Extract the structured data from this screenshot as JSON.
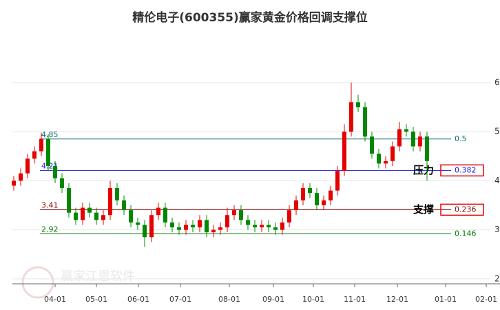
{
  "chart_data": {
    "type": "candlestick",
    "title": "精伦电子(600355)赢家黄金价格回调支撑位",
    "watermark": "赢家江恩软件",
    "up_color": "#e60000",
    "down_color": "#008800",
    "grid": true,
    "ylim": [
      1.9,
      7.05
    ],
    "yticks": [
      2,
      3,
      4,
      5,
      6
    ],
    "xlim": [
      -0.2,
      69.6
    ],
    "xticks": [
      {
        "value": 6,
        "label": "04-01"
      },
      {
        "value": 12,
        "label": "05-01"
      },
      {
        "value": 18.1,
        "label": "06-01"
      },
      {
        "value": 24.2,
        "label": "07-01"
      },
      {
        "value": 31.3,
        "label": "08-01"
      },
      {
        "value": 37.7,
        "label": "09-01"
      },
      {
        "value": 43.5,
        "label": "10-01"
      },
      {
        "value": 49.5,
        "label": "11-01"
      },
      {
        "value": 55.7,
        "label": "12-01"
      },
      {
        "value": 62.7,
        "label": "01-01"
      },
      {
        "value": 68.6,
        "label": "02-01"
      }
    ],
    "open": [
      3.9,
      4.0,
      4.15,
      4.45,
      4.6,
      4.85,
      4.3,
      4.05,
      3.85,
      3.35,
      3.2,
      3.45,
      3.35,
      3.2,
      3.3,
      3.85,
      3.6,
      3.4,
      3.15,
      3.1,
      2.85,
      3.3,
      3.45,
      3.15,
      3.05,
      3.0,
      3.1,
      3.05,
      3.2,
      2.95,
      3.0,
      3.05,
      3.3,
      3.4,
      3.2,
      3.1,
      3.05,
      3.1,
      3.05,
      3.0,
      3.15,
      3.4,
      3.6,
      3.85,
      3.75,
      3.5,
      3.6,
      3.8,
      4.2,
      5.0,
      5.6,
      5.5,
      4.9,
      4.55,
      4.35,
      4.4,
      4.7,
      5.05,
      5.0,
      4.7,
      4.9
    ],
    "high": [
      4.1,
      4.25,
      4.55,
      4.7,
      4.98,
      4.95,
      4.4,
      4.15,
      3.95,
      3.45,
      3.55,
      3.55,
      3.45,
      3.4,
      4.0,
      3.95,
      3.7,
      3.5,
      3.25,
      3.2,
      3.4,
      3.55,
      3.55,
      3.25,
      3.15,
      3.2,
      3.2,
      3.3,
      3.3,
      3.1,
      3.15,
      3.45,
      3.5,
      3.5,
      3.3,
      3.2,
      3.2,
      3.2,
      3.15,
      3.25,
      3.5,
      3.7,
      3.95,
      3.95,
      3.85,
      3.7,
      3.9,
      4.3,
      5.15,
      6.0,
      5.75,
      5.6,
      5.0,
      4.65,
      4.5,
      4.8,
      5.2,
      5.15,
      5.1,
      5.0,
      5.0
    ],
    "low": [
      3.8,
      3.9,
      4.05,
      4.35,
      4.5,
      4.2,
      3.95,
      3.75,
      3.25,
      3.1,
      3.1,
      3.25,
      3.1,
      3.1,
      3.2,
      3.5,
      3.3,
      3.05,
      3.0,
      2.65,
      2.75,
      3.2,
      3.05,
      2.95,
      2.9,
      2.9,
      2.95,
      2.95,
      2.85,
      2.85,
      2.9,
      2.95,
      3.2,
      3.1,
      3.0,
      2.95,
      2.95,
      2.95,
      2.9,
      2.9,
      3.05,
      3.3,
      3.5,
      3.65,
      3.4,
      3.4,
      3.5,
      3.7,
      4.1,
      4.9,
      5.4,
      4.8,
      4.45,
      4.25,
      4.25,
      4.3,
      4.6,
      4.9,
      4.6,
      4.6,
      4.0
    ],
    "close": [
      4.0,
      4.15,
      4.45,
      4.6,
      4.85,
      4.3,
      4.05,
      3.85,
      3.35,
      3.2,
      3.45,
      3.35,
      3.2,
      3.3,
      3.85,
      3.6,
      3.4,
      3.15,
      3.1,
      2.85,
      3.3,
      3.45,
      3.15,
      3.05,
      3.0,
      3.1,
      3.05,
      3.2,
      2.95,
      3.0,
      3.05,
      3.3,
      3.4,
      3.2,
      3.1,
      3.05,
      3.1,
      3.05,
      3.0,
      3.15,
      3.4,
      3.6,
      3.85,
      3.75,
      3.5,
      3.6,
      3.8,
      4.2,
      5.0,
      5.6,
      5.5,
      4.9,
      4.55,
      4.35,
      4.4,
      4.7,
      5.05,
      5.0,
      4.7,
      4.9,
      4.4
    ],
    "levels": [
      {
        "price": 4.85,
        "ratio": 0.5,
        "color": "#0a6e6e",
        "boxed": false
      },
      {
        "price": 4.21,
        "ratio": 0.382,
        "color": "#1a1acc",
        "boxed": true,
        "note": "压力"
      },
      {
        "price": 3.41,
        "ratio": 0.236,
        "color": "#8b0000",
        "boxed": true,
        "note": "支撑"
      },
      {
        "price": 2.92,
        "ratio": 0.146,
        "color": "#007700",
        "boxed": false
      }
    ]
  }
}
